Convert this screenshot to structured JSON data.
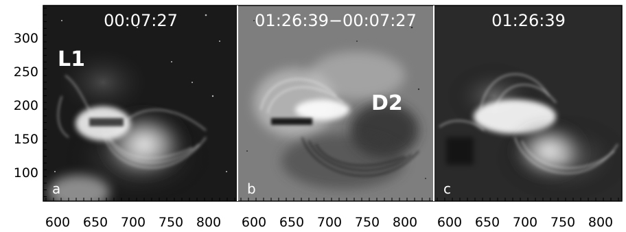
{
  "panels": [
    {
      "letter": "a",
      "time": "00:07:27",
      "feature": "L1",
      "kind": "intensity"
    },
    {
      "letter": "b",
      "time": "01:26:39−00:07:27",
      "feature": "D2",
      "kind": "difference"
    },
    {
      "letter": "c",
      "time": "01:26:39",
      "feature": "",
      "kind": "intensity"
    }
  ],
  "axes": {
    "x_ticks": [
      "600",
      "650",
      "700",
      "750",
      "800"
    ],
    "y_ticks": [
      "300",
      "250",
      "200",
      "150",
      "100"
    ]
  }
}
